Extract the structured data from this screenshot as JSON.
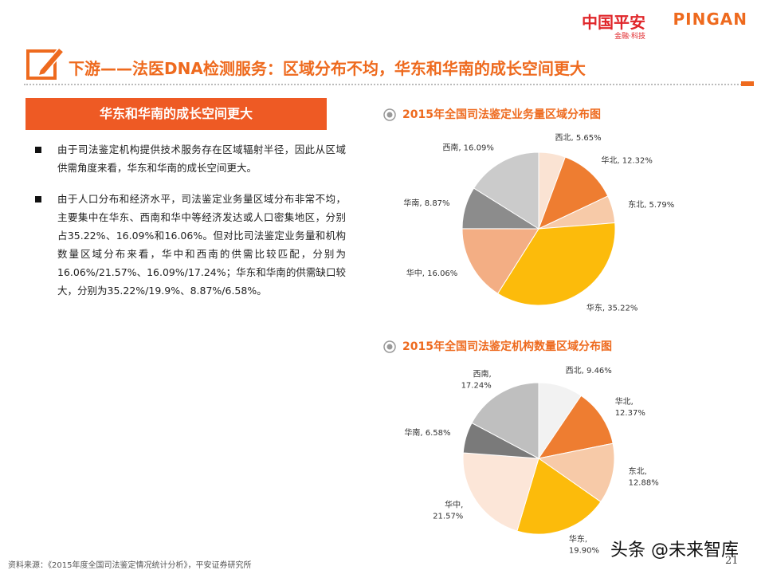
{
  "header": {
    "logo_cn": "中国平安",
    "logo_en": "PINGAN",
    "logo_sub": "金融·科技",
    "title": "下游——法医DNA检测服务：区域分布不均，华东和华南的成长空间更大"
  },
  "section_title": "华东和华南的成长空间更大",
  "bullets": [
    "由于司法鉴定机构提供技术服务存在区域辐射半径，因此从区域供需角度来看，华东和华南的成长空间更大。",
    "由于人口分布和经济水平，司法鉴定业务量区域分布非常不均，主要集中在华东、西南和华中等经济发达或人口密集地区，分别占35.22%、16.09%和16.06%。但对比司法鉴定业务量和机构数量区域分布来看，华中和西南的供需比较匹配，分别为16.06%/21.57%、16.09%/17.24%；华东和华南的供需缺口较大，分别为35.22%/19.9%、8.87%/6.58%。"
  ],
  "chart_data": [
    {
      "type": "pie",
      "title": "2015年全国司法鉴定业务量区域分布图",
      "labels": [
        [
          "西北, 5.65%"
        ],
        [
          "华北, 12.32%"
        ],
        [
          "东北, 5.79%"
        ],
        [
          "华东, 35.22%"
        ],
        [
          "华中, 16.06%"
        ],
        [
          "华南, 8.87%"
        ],
        [
          "西南, 16.09%"
        ]
      ],
      "values": [
        5.65,
        12.32,
        5.79,
        35.22,
        16.06,
        8.87,
        16.09
      ],
      "colors": [
        "#fae3d3",
        "#ee7d31",
        "#f7caa8",
        "#fcbb0b",
        "#f3ae84",
        "#8c8c8c",
        "#cbcbcb"
      ]
    },
    {
      "type": "pie",
      "title": "2015年全国司法鉴定机构数量区域分布图",
      "labels": [
        [
          "西北, 9.46%"
        ],
        [
          "华北,",
          "12.37%"
        ],
        [
          "东北,",
          "12.88%"
        ],
        [
          "华东,",
          "19.90%"
        ],
        [
          "华中,",
          "21.57%"
        ],
        [
          "华南, 6.58%"
        ],
        [
          "西南,",
          "17.24%"
        ]
      ],
      "values": [
        9.46,
        12.37,
        12.88,
        19.9,
        21.57,
        6.58,
        17.24
      ],
      "colors": [
        "#f2f2f2",
        "#ee7d31",
        "#f7caa8",
        "#fcbb0b",
        "#fce6d8",
        "#7a7a7a",
        "#bfbfbf"
      ]
    }
  ],
  "source": "资料来源：《2015年度全国司法鉴定情况统计分析》，平安证券研究所",
  "page_number": "21",
  "watermark": "头条 @未来智库"
}
